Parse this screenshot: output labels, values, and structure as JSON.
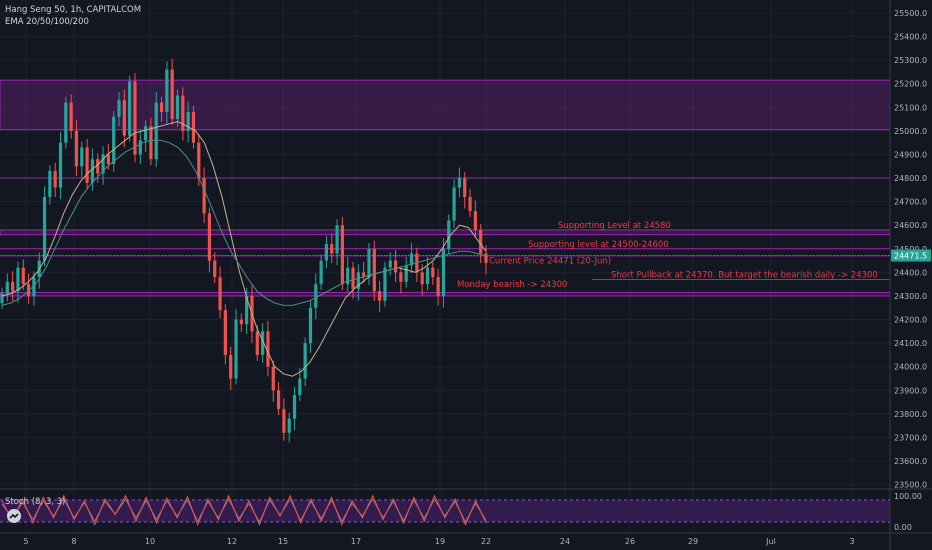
{
  "header": {
    "symbol_line": "Hang Seng 50, 1h, CAPITALCOM",
    "indicator_line": "EMA 20/50/100/200"
  },
  "stoch_panel": {
    "label": "Stoch (8, 3, 3)",
    "ticks": [
      "100.00",
      "0.00"
    ]
  },
  "price_badge": "24471.5",
  "colors": {
    "background": "#131722",
    "zone": "#9c27b0",
    "up_candle": "#26a69a",
    "down_candle": "#ef5350",
    "annotation_text": "#f23645",
    "price_line": "#26a69a",
    "stoch_k": "#ef5350",
    "stoch_d": "#787b86",
    "stoch_bg": "#3b1e5a"
  },
  "chart_data": {
    "type": "candlestick",
    "title": "Hang Seng 50, 1h, CAPITALCOM",
    "y_ticks": [
      25500,
      25400,
      25300,
      25200,
      25100,
      25000,
      24900,
      24800,
      24700,
      24600,
      24500,
      24400,
      24300,
      24200,
      24100,
      24000,
      23900,
      23800,
      23700,
      23600,
      23500
    ],
    "y_tick_labels": [
      "25500.0",
      "25400.0",
      "25300.0",
      "25200.0",
      "25100.0",
      "25000.0",
      "24900.0",
      "24800.0",
      "24700.0",
      "24600.0",
      "24500.0",
      "24400.0",
      "24300.0",
      "24200.0",
      "24100.0",
      "24000.0",
      "23900.0",
      "23800.0",
      "23700.0",
      "23600.0",
      "23500.0"
    ],
    "ylim": [
      23490,
      25555
    ],
    "x_tick_labels": [
      "5",
      "8",
      "10",
      "12",
      "15",
      "17",
      "19",
      "22",
      "24",
      "26",
      "29",
      "Jul",
      "3"
    ],
    "current_price": 24471.5,
    "zones": [
      {
        "from": 25005,
        "to": 25215
      },
      {
        "from": 24560,
        "to": 24580
      },
      {
        "from": 24300,
        "to": 24315
      }
    ],
    "level_lines": [
      24800,
      24500,
      24470,
      24370
    ],
    "annotations": [
      {
        "text": "Supporting Level at 24580",
        "price": 24580
      },
      {
        "text": "Supporting level at 24500-24600",
        "price": 24500
      },
      {
        "text": "Current Price 24471  (20-Jun)",
        "price": 24430
      },
      {
        "text": "Short Pullback at 24370.  But target the bearish daily -> 24300",
        "price": 24370
      },
      {
        "text": "Monday bearish -> 24300",
        "price": 24330
      }
    ],
    "candles_close_path": [
      24310,
      24360,
      24320,
      24420,
      24350,
      24300,
      24380,
      24450,
      24720,
      24830,
      24760,
      24950,
      25120,
      25000,
      24850,
      24930,
      24780,
      24880,
      24820,
      24900,
      24860,
      25060,
      25130,
      24980,
      25210,
      24900,
      24960,
      25020,
      24880,
      25120,
      25080,
      25260,
      25050,
      25150,
      25000,
      25080,
      24950,
      24800,
      24650,
      24450,
      24380,
      24240,
      24050,
      23950,
      24200,
      24180,
      24300,
      24150,
      24050,
      24150,
      24000,
      23900,
      23820,
      23720,
      23780,
      23880,
      23950,
      24100,
      24250,
      24350,
      24450,
      24520,
      24480,
      24600,
      24350,
      24420,
      24330,
      24400,
      24380,
      24500,
      24320,
      24280,
      24420,
      24450,
      24400,
      24360,
      24430,
      24480,
      24400,
      24350,
      24420,
      24380,
      24300,
      24500,
      24620,
      24760,
      24800,
      24720,
      24660,
      24580,
      24480,
      24440
    ],
    "ema_fast_path": [
      24300,
      24310,
      24330,
      24360,
      24400,
      24460,
      24550,
      24650,
      24730,
      24790,
      24830,
      24860,
      24900,
      24930,
      24960,
      24990,
      25000,
      25010,
      25020,
      25030,
      25040,
      25020,
      25000,
      24950,
      24850,
      24720,
      24560,
      24400,
      24270,
      24160,
      24080,
      24000,
      23970,
      23960,
      23980,
      24020,
      24080,
      24150,
      24220,
      24290,
      24330,
      24360,
      24390,
      24400,
      24410,
      24420,
      24410,
      24400,
      24420,
      24450,
      24500,
      24560,
      24600,
      24590,
      24540,
      24490
    ],
    "ema_slow_path": [
      24260,
      24270,
      24290,
      24320,
      24360,
      24420,
      24500,
      24580,
      24650,
      24720,
      24770,
      24810,
      24850,
      24880,
      24910,
      24930,
      24950,
      24960,
      24960,
      24950,
      24930,
      24890,
      24830,
      24750,
      24660,
      24570,
      24490,
      24430,
      24370,
      24320,
      24290,
      24270,
      24260,
      24260,
      24270,
      24280,
      24300,
      24320,
      24340,
      24360,
      24370,
      24380,
      24390,
      24400,
      24410,
      24420,
      24430,
      24440,
      24450,
      24460,
      24470,
      24480,
      24490,
      24490,
      24480,
      24470
    ],
    "stoch_k_path": [
      80,
      20,
      85,
      15,
      90,
      30,
      95,
      25,
      80,
      10,
      85,
      40,
      95,
      20,
      90,
      15,
      88,
      30,
      92,
      10,
      85,
      25,
      95,
      20,
      80,
      10,
      90,
      35,
      95,
      15,
      85,
      20,
      90,
      10,
      80,
      30,
      95,
      25,
      85,
      15,
      90,
      20,
      95,
      30,
      85,
      10,
      80,
      15
    ],
    "stoch_d_path": [
      70,
      30,
      75,
      25,
      80,
      35,
      85,
      30,
      75,
      20,
      78,
      40,
      85,
      30,
      80,
      25,
      80,
      35,
      82,
      20,
      78,
      30,
      85,
      28,
      72,
      18,
      82,
      38,
      85,
      22,
      78,
      28,
      82,
      20,
      72,
      35,
      85,
      30,
      78,
      22,
      82,
      28,
      85,
      35,
      78,
      18,
      72,
      22
    ],
    "xlim_fraction_of_data": 0.575
  }
}
